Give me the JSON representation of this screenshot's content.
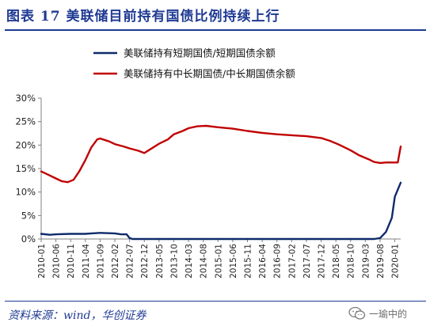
{
  "figure_title": "图表  17    美联储目前持有国债比例持续上行",
  "source": "资料来源：wind，华创证券",
  "watermark": "一瑜中的",
  "watermark_icon": "wechat-icon",
  "colors": {
    "accent": "#1f3a93",
    "short_term": "#0f2b6b",
    "long_term": "#c00000"
  },
  "chart_data": {
    "type": "line",
    "legend_position": "top",
    "grid": false,
    "x_tick_labels": [
      "2010-01",
      "2010-06",
      "2010-11",
      "2011-04",
      "2011-09",
      "2012-02",
      "2012-07",
      "2012-12",
      "2013-05",
      "2013-10",
      "2014-03",
      "2014-08",
      "2015-01",
      "2015-06",
      "2015-11",
      "2016-04",
      "2016-09",
      "2017-02",
      "2017-07",
      "2017-12",
      "2018-05",
      "2018-10",
      "2019-03",
      "2019-08",
      "2020-01"
    ],
    "x_range": [
      "2010-01",
      "2020-03"
    ],
    "ylim": [
      0,
      30
    ],
    "y_ticks": [
      0,
      5,
      10,
      15,
      20,
      25,
      30
    ],
    "y_tick_labels": [
      "0%",
      "5%",
      "10%",
      "15%",
      "20%",
      "25%",
      "30%"
    ],
    "series": [
      {
        "name": "美联储持有短期国债/短期国债余额",
        "color": "#0f2b6b",
        "points": [
          [
            "2010-01",
            1.1
          ],
          [
            "2010-04",
            0.9
          ],
          [
            "2010-06",
            1.0
          ],
          [
            "2010-11",
            1.1
          ],
          [
            "2011-04",
            1.1
          ],
          [
            "2011-06",
            1.2
          ],
          [
            "2011-09",
            1.3
          ],
          [
            "2012-02",
            1.2
          ],
          [
            "2012-04",
            1.0
          ],
          [
            "2012-06",
            1.0
          ],
          [
            "2012-07",
            0.2
          ],
          [
            "2012-08",
            0.0
          ],
          [
            "2015-01",
            0.0
          ],
          [
            "2019-06",
            0.0
          ],
          [
            "2019-08",
            0.2
          ],
          [
            "2019-10",
            1.5
          ],
          [
            "2019-12",
            4.5
          ],
          [
            "2020-01",
            9.0
          ],
          [
            "2020-02",
            10.5
          ],
          [
            "2020-03",
            12.0
          ]
        ]
      },
      {
        "name": "美联储持有中长期国债/中长期国债余额",
        "color": "#c00000",
        "points": [
          [
            "2010-01",
            14.4
          ],
          [
            "2010-03",
            13.8
          ],
          [
            "2010-06",
            12.9
          ],
          [
            "2010-08",
            12.3
          ],
          [
            "2010-10",
            12.1
          ],
          [
            "2010-12",
            12.6
          ],
          [
            "2011-02",
            14.5
          ],
          [
            "2011-04",
            16.8
          ],
          [
            "2011-06",
            19.5
          ],
          [
            "2011-08",
            21.2
          ],
          [
            "2011-09",
            21.4
          ],
          [
            "2011-12",
            20.8
          ],
          [
            "2012-02",
            20.2
          ],
          [
            "2012-05",
            19.7
          ],
          [
            "2012-07",
            19.3
          ],
          [
            "2012-10",
            18.8
          ],
          [
            "2012-12",
            18.3
          ],
          [
            "2013-02",
            19.1
          ],
          [
            "2013-05",
            20.3
          ],
          [
            "2013-08",
            21.2
          ],
          [
            "2013-10",
            22.3
          ],
          [
            "2014-01",
            23.0
          ],
          [
            "2014-03",
            23.6
          ],
          [
            "2014-06",
            24.0
          ],
          [
            "2014-09",
            24.1
          ],
          [
            "2015-01",
            23.8
          ],
          [
            "2015-06",
            23.5
          ],
          [
            "2015-11",
            23.0
          ],
          [
            "2016-04",
            22.6
          ],
          [
            "2016-09",
            22.3
          ],
          [
            "2017-02",
            22.1
          ],
          [
            "2017-07",
            21.9
          ],
          [
            "2017-12",
            21.5
          ],
          [
            "2018-03",
            20.9
          ],
          [
            "2018-06",
            20.1
          ],
          [
            "2018-10",
            18.9
          ],
          [
            "2019-01",
            17.8
          ],
          [
            "2019-04",
            17.0
          ],
          [
            "2019-06",
            16.4
          ],
          [
            "2019-08",
            16.2
          ],
          [
            "2019-10",
            16.3
          ],
          [
            "2020-02",
            16.3
          ],
          [
            "2020-03",
            19.7
          ]
        ]
      }
    ]
  }
}
